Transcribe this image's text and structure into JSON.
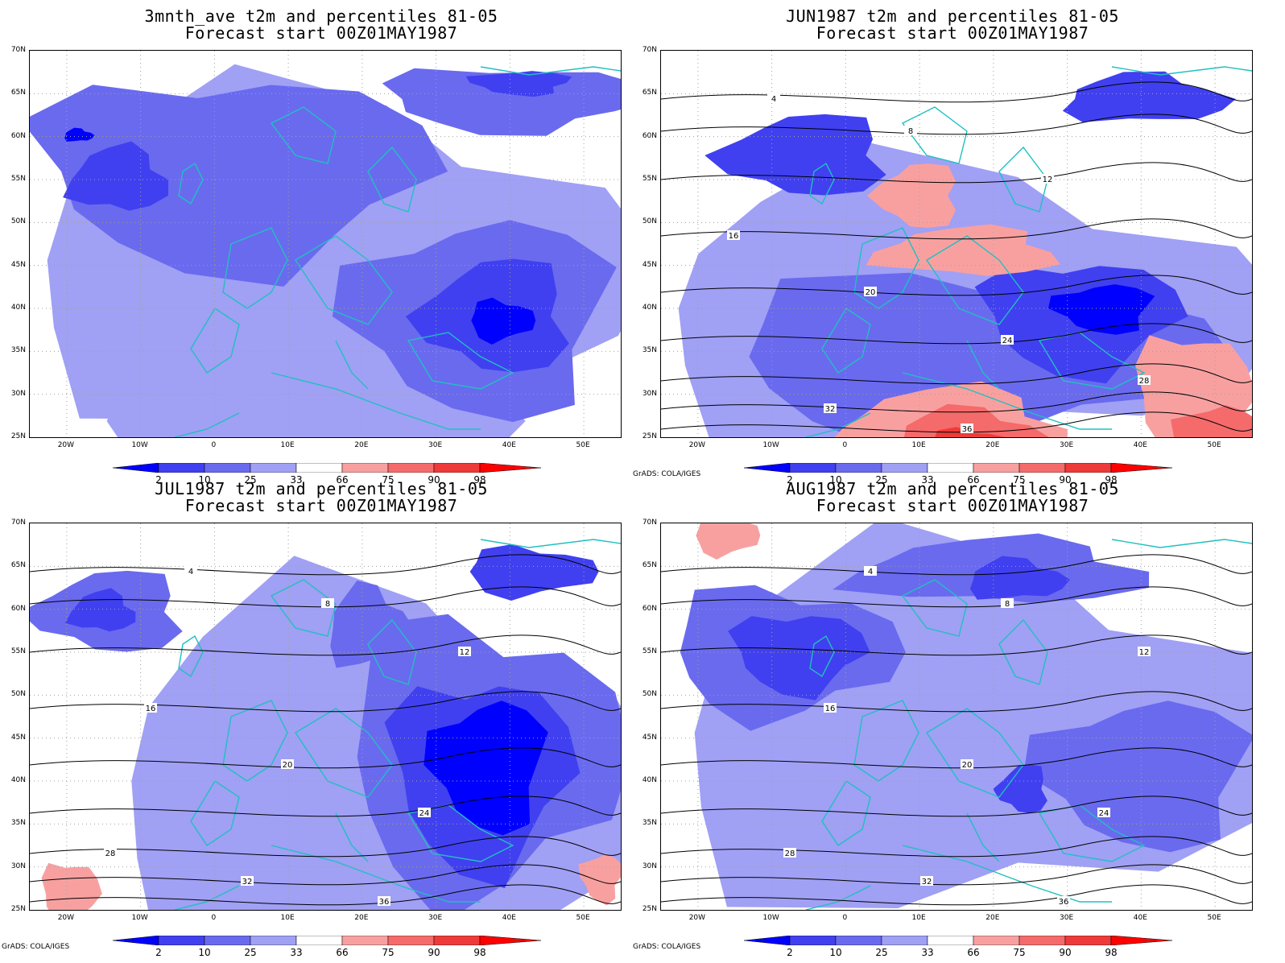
{
  "panels": [
    {
      "title1": "3mnth_ave t2m and percentiles 81-05",
      "title2": "Forecast start 00Z01MAY1987",
      "credit": "",
      "contours": false,
      "variant": 0
    },
    {
      "title1": "JUN1987 t2m and percentiles 81-05",
      "title2": "Forecast start 00Z01MAY1987",
      "credit": "GrADS: COLA/IGES",
      "contours": true,
      "variant": 1
    },
    {
      "title1": "JUL1987 t2m and percentiles 81-05",
      "title2": "Forecast start 00Z01MAY1987",
      "credit": "GrADS: COLA/IGES",
      "contours": true,
      "variant": 2
    },
    {
      "title1": "AUG1987 t2m and percentiles 81-05",
      "title2": "Forecast start 00Z01MAY1987",
      "credit": "GrADS: COLA/IGES",
      "contours": true,
      "variant": 3
    }
  ],
  "axes": {
    "lat_labels": [
      "70N",
      "65N",
      "60N",
      "55N",
      "50N",
      "45N",
      "40N",
      "35N",
      "30N",
      "25N"
    ],
    "lon_labels": [
      "20W",
      "10W",
      "0",
      "10E",
      "20E",
      "30E",
      "40E",
      "50E"
    ],
    "lat_range": [
      25,
      70
    ],
    "lon_range": [
      -25,
      55
    ]
  },
  "colorbar": {
    "ticks": [
      "2",
      "10",
      "25",
      "33",
      "66",
      "75",
      "90",
      "98"
    ],
    "colors": [
      "#0000ff",
      "#4040f0",
      "#6a6aef",
      "#a0a0f5",
      "#ffffff",
      "#f8a0a0",
      "#f56a6a",
      "#ef3a3a",
      "#ff0000"
    ]
  },
  "colors": {
    "coast": "#20c0c0",
    "contour": "#000000",
    "grid": "#a0a0a0"
  },
  "contour_labels": [
    "4",
    "8",
    "12",
    "16",
    "20",
    "24",
    "28",
    "32",
    "36"
  ]
}
